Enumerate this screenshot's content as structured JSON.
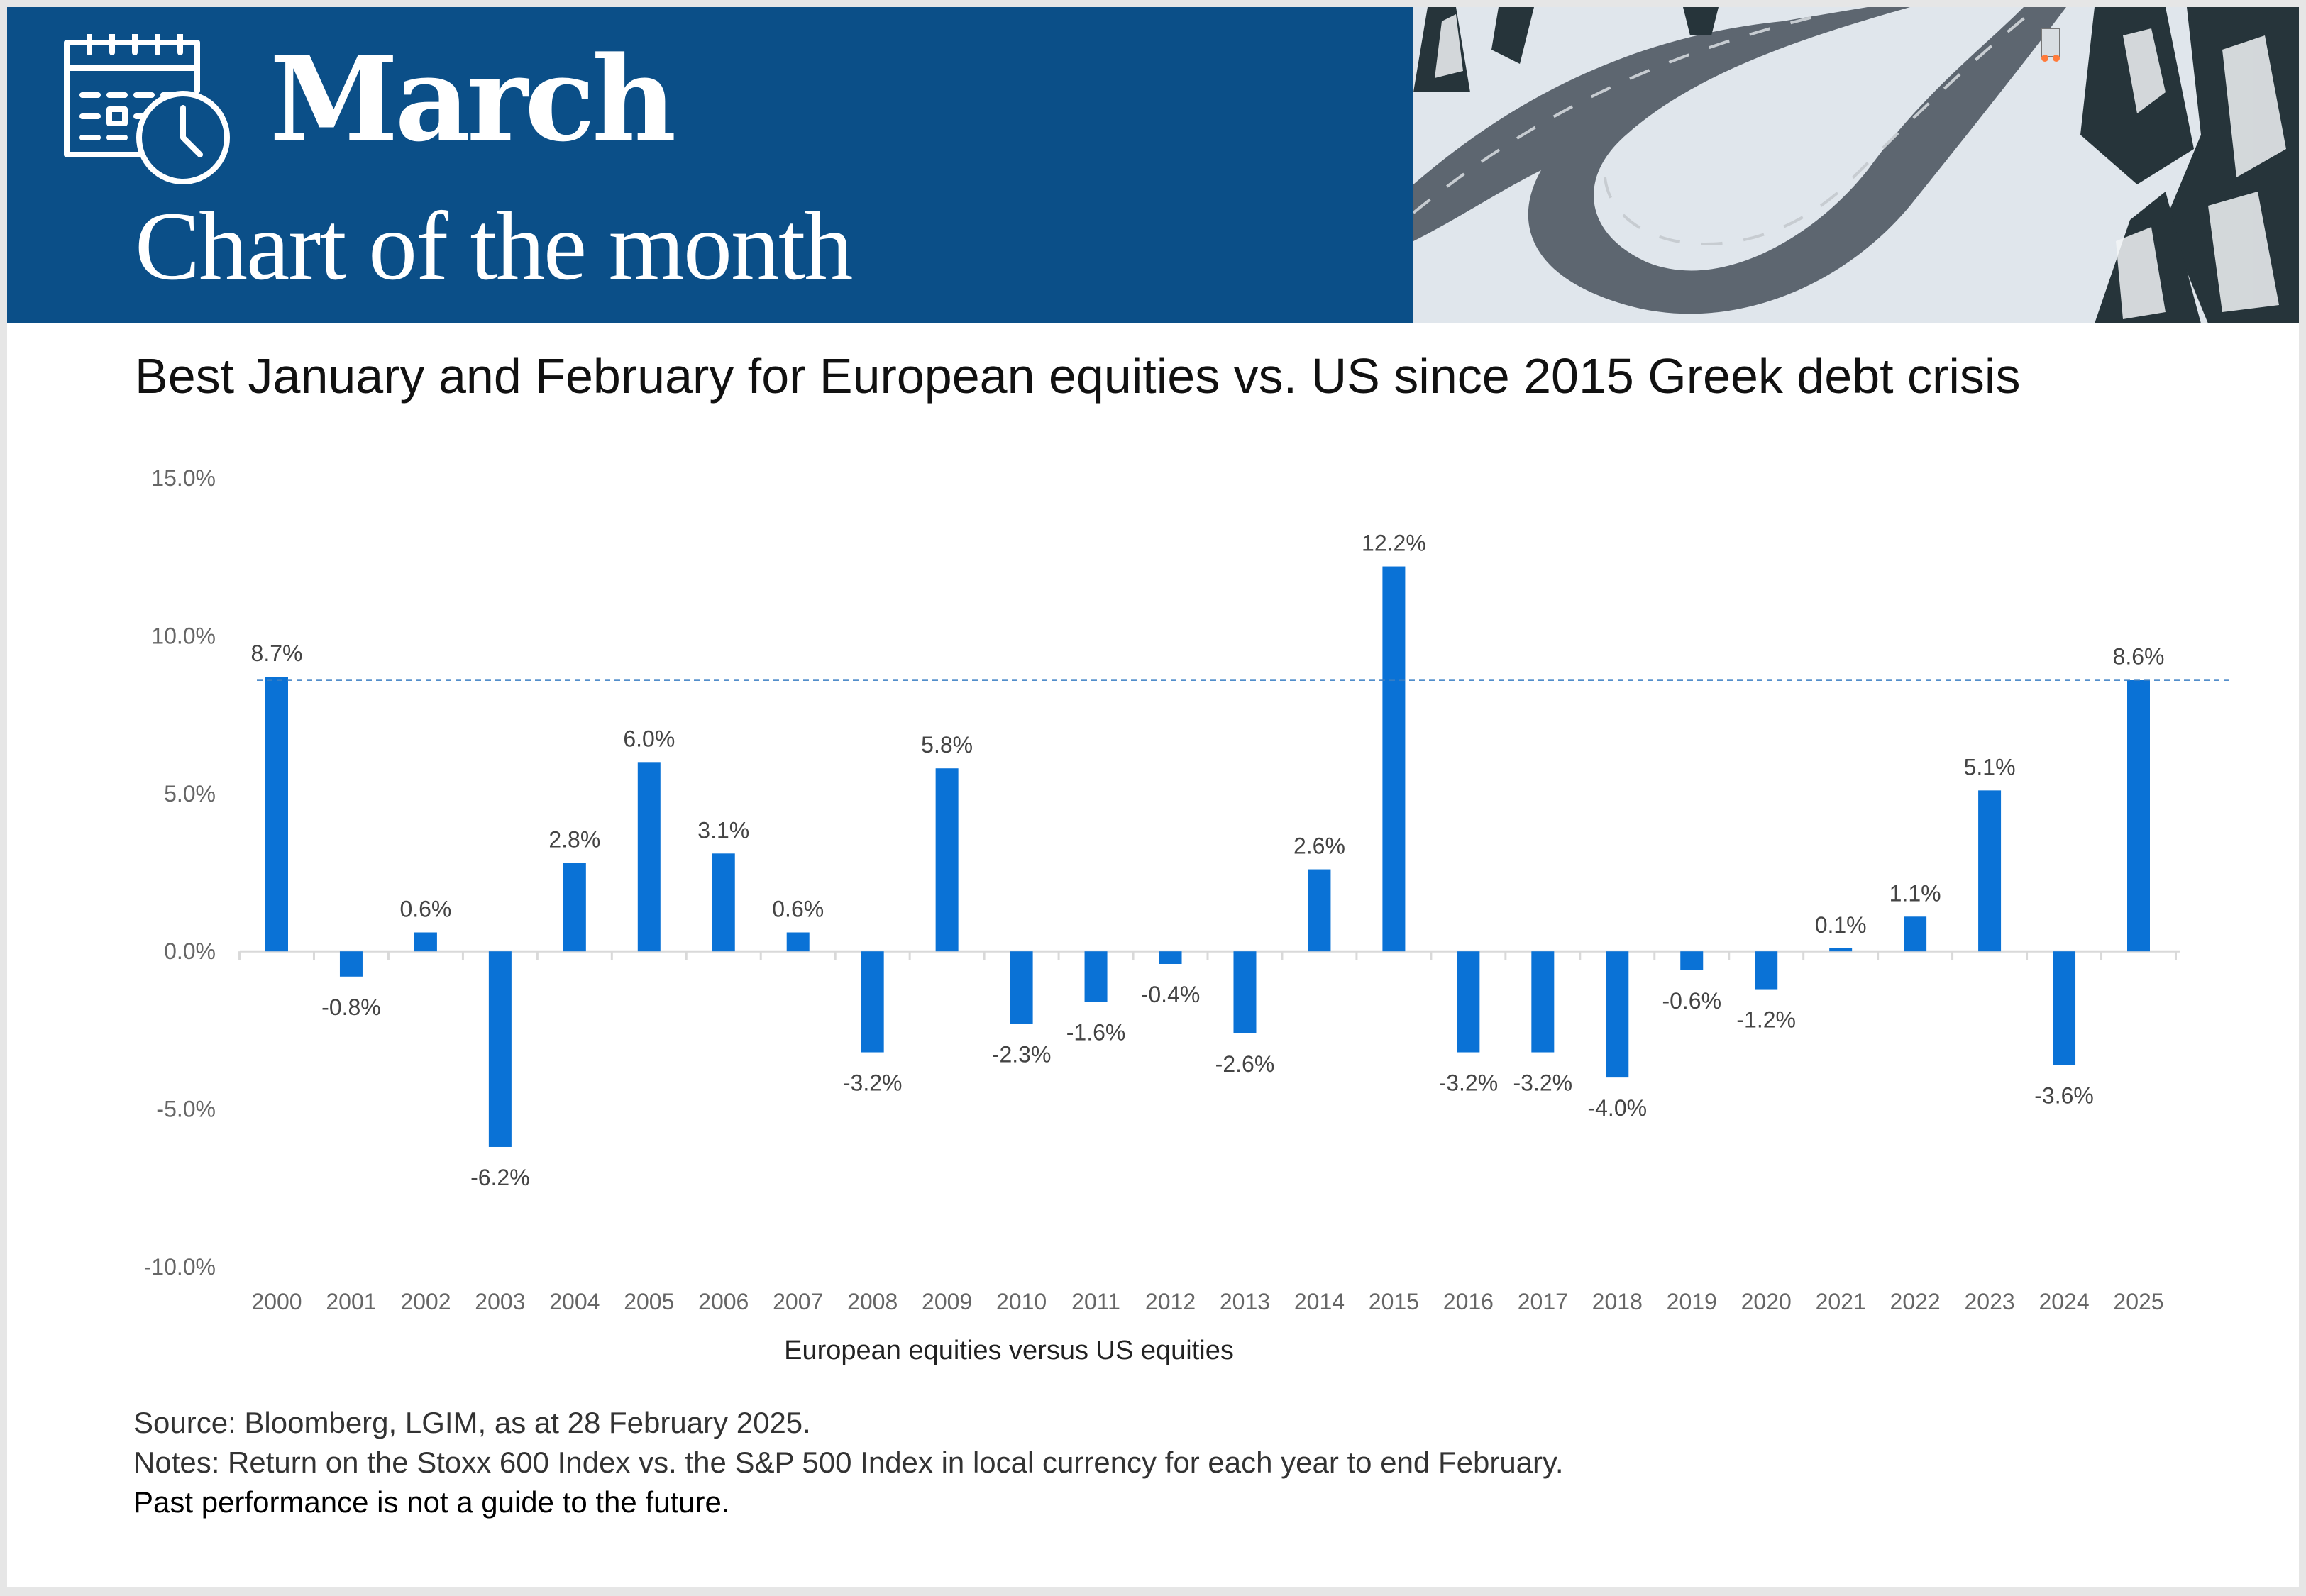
{
  "header": {
    "month": "March",
    "series_title": "Chart of the month",
    "icon": "calendar-clock-icon",
    "photo": "snowy-winding-road-photo",
    "band_color": "#0b4f88"
  },
  "chart_title": "Best January and February for European equities vs. US since 2015 Greek debt crisis",
  "chart_data": {
    "type": "bar",
    "title": "Best January and February for European equities vs. US since 2015 Greek debt crisis",
    "xlabel": "European equities versus US equities",
    "ylabel": "",
    "ylim": [
      -10,
      15
    ],
    "yticks": [
      15,
      10,
      5,
      0,
      -5,
      -10
    ],
    "ytick_labels": [
      "15.0%",
      "10.0%",
      "5.0%",
      "0.0%",
      "-5.0%",
      "-10.0%"
    ],
    "categories": [
      "2000",
      "2001",
      "2002",
      "2003",
      "2004",
      "2005",
      "2006",
      "2007",
      "2008",
      "2009",
      "2010",
      "2011",
      "2012",
      "2013",
      "2014",
      "2015",
      "2016",
      "2017",
      "2018",
      "2019",
      "2020",
      "2021",
      "2022",
      "2023",
      "2024",
      "2025"
    ],
    "values": [
      8.7,
      -0.8,
      0.6,
      -6.2,
      2.8,
      6.0,
      3.1,
      0.6,
      -3.2,
      5.8,
      -2.3,
      -1.6,
      -0.4,
      -2.6,
      2.6,
      12.2,
      -3.2,
      -3.2,
      -4.0,
      -0.6,
      -1.2,
      0.1,
      1.1,
      5.1,
      -3.6,
      8.6
    ],
    "data_labels": [
      "8.7%",
      "-0.8%",
      "0.6%",
      "-6.2%",
      "2.8%",
      "6.0%",
      "3.1%",
      "0.6%",
      "-3.2%",
      "5.8%",
      "-2.3%",
      "-1.6%",
      "-0.4%",
      "-2.6%",
      "2.6%",
      "12.2%",
      "-3.2%",
      "-3.2%",
      "-4.0%",
      "-0.6%",
      "-1.2%",
      "0.1%",
      "1.1%",
      "5.1%",
      "-3.6%",
      "8.6%"
    ],
    "reference_line": {
      "value": 8.6,
      "style": "dashed"
    },
    "grid": false,
    "legend": "none",
    "bar_color": "#0a72d6"
  },
  "footer": {
    "source": "Source: Bloomberg, LGIM, as at 28 February 2025.",
    "notes": "Notes: Return on the Stoxx 600 Index vs. the S&P 500 Index in local currency for each year to end February.",
    "disclaimer": "Past performance is not a guide to the future."
  }
}
